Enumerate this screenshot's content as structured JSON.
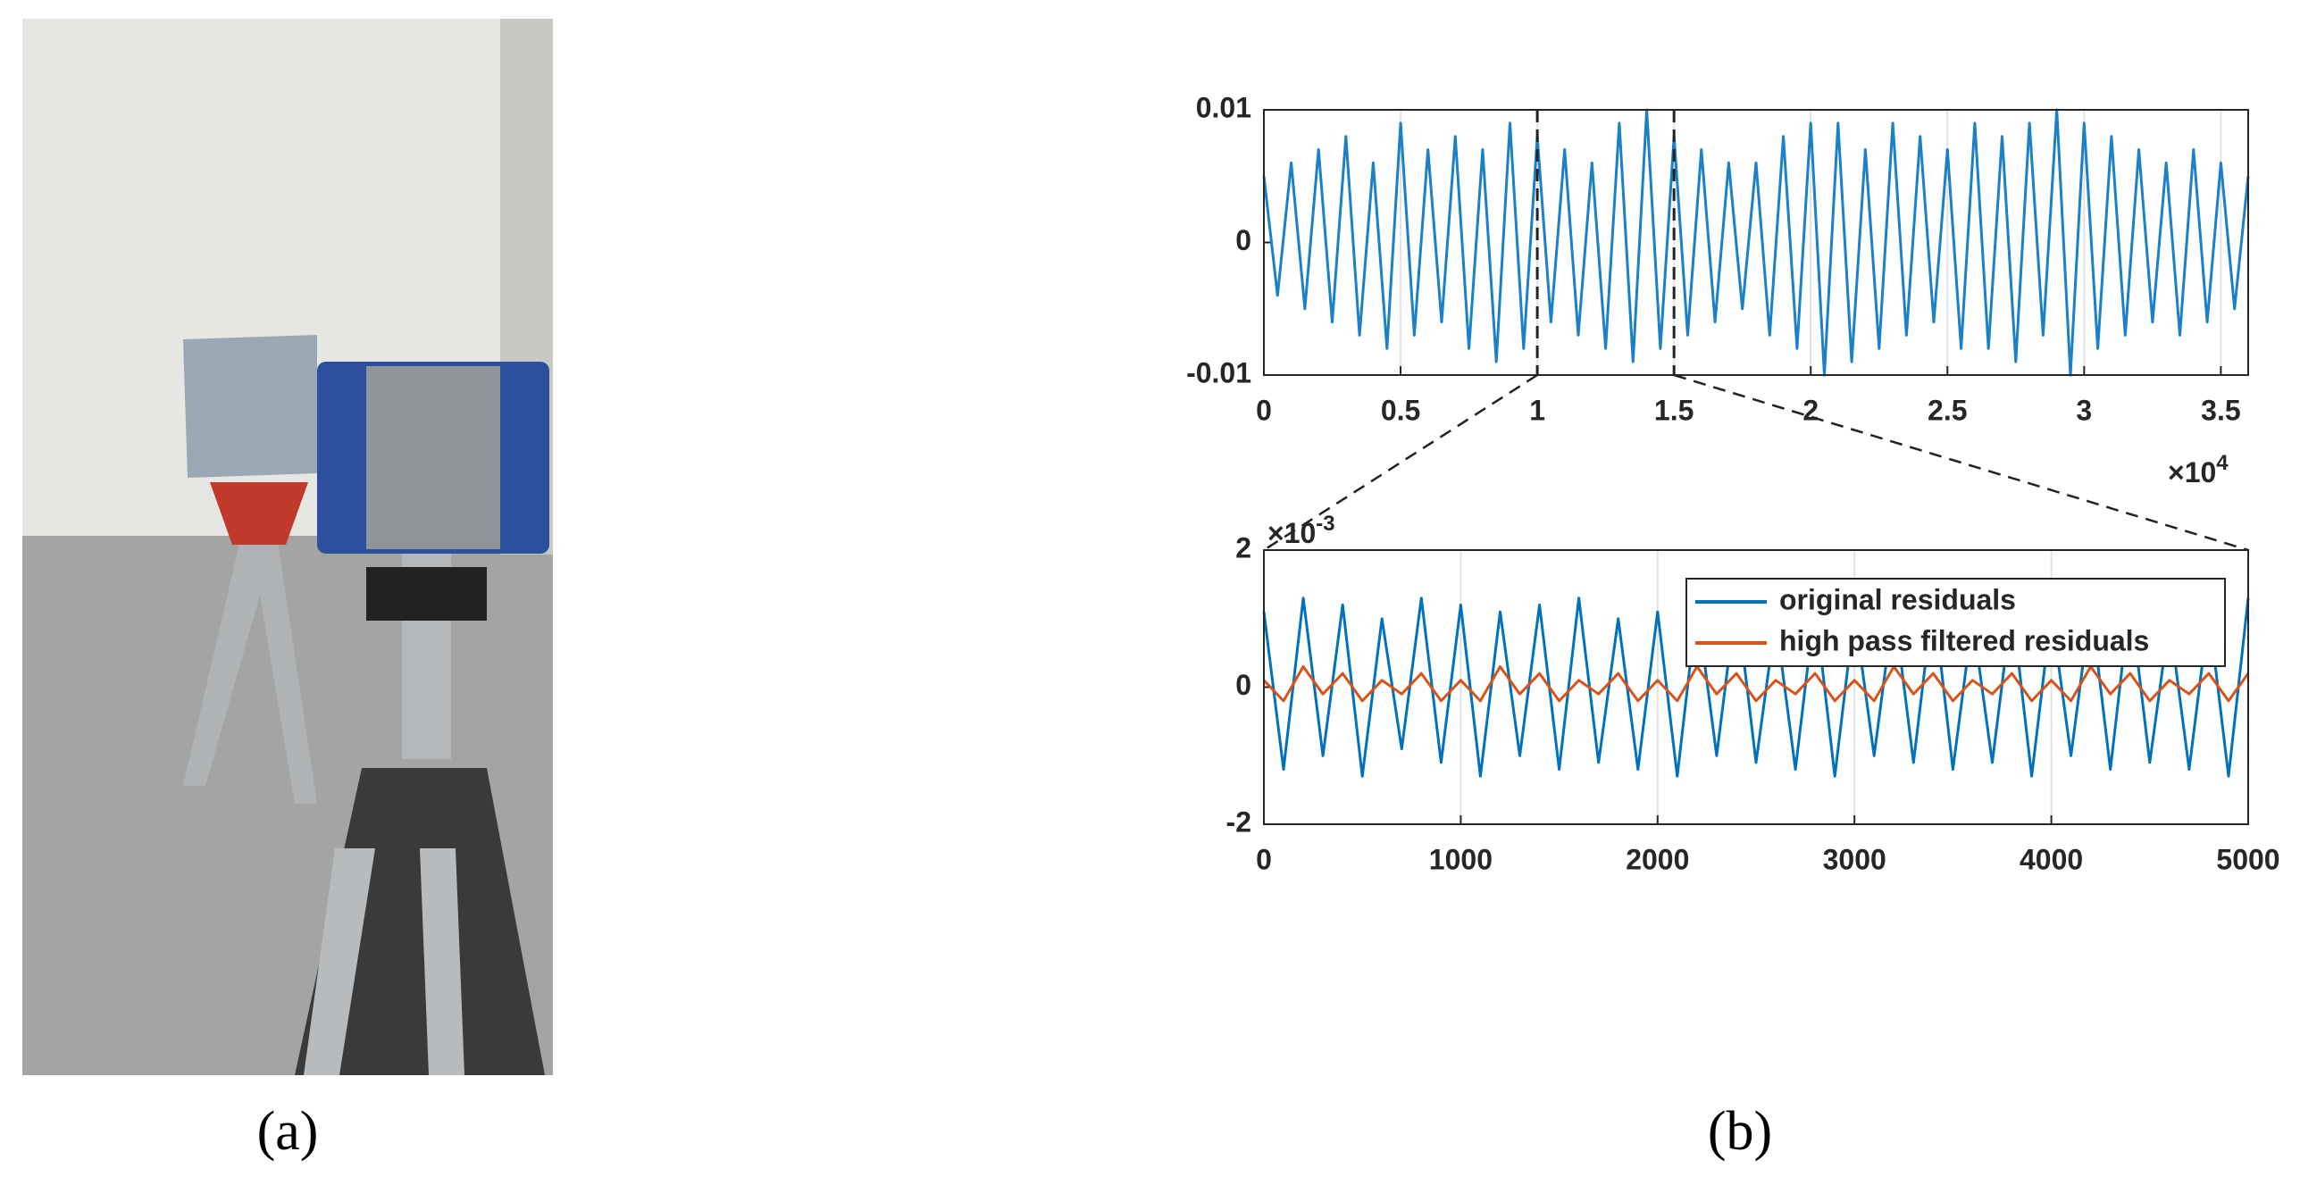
{
  "panels": [
    {
      "label": "(a)"
    },
    {
      "label": "(b)"
    }
  ],
  "chart_data": [
    {
      "type": "line",
      "x": [
        0,
        0.05,
        0.1,
        0.15,
        0.2,
        0.25,
        0.3,
        0.35,
        0.4,
        0.45,
        0.5,
        0.55,
        0.6,
        0.65,
        0.7,
        0.75,
        0.8,
        0.85,
        0.9,
        0.95,
        1,
        1.05,
        1.1,
        1.15,
        1.2,
        1.25,
        1.3,
        1.35,
        1.4,
        1.45,
        1.5,
        1.55,
        1.6,
        1.65,
        1.7,
        1.75,
        1.8,
        1.85,
        1.9,
        1.95,
        2,
        2.05,
        2.1,
        2.15,
        2.2,
        2.25,
        2.3,
        2.35,
        2.4,
        2.45,
        2.5,
        2.55,
        2.6,
        2.65,
        2.7,
        2.75,
        2.8,
        2.85,
        2.9,
        2.95,
        3,
        3.05,
        3.1,
        3.15,
        3.2,
        3.25,
        3.3,
        3.35,
        3.4,
        3.45,
        3.5,
        3.55,
        3.6
      ],
      "values": [
        0.005,
        -0.004,
        0.006,
        -0.005,
        0.007,
        -0.006,
        0.008,
        -0.007,
        0.006,
        -0.008,
        0.009,
        -0.007,
        0.007,
        -0.006,
        0.008,
        -0.008,
        0.007,
        -0.009,
        0.009,
        -0.008,
        0.008,
        -0.006,
        0.007,
        -0.007,
        0.006,
        -0.008,
        0.009,
        -0.009,
        0.01,
        -0.008,
        0.008,
        -0.007,
        0.007,
        -0.006,
        0.006,
        -0.005,
        0.006,
        -0.007,
        0.008,
        -0.008,
        0.009,
        -0.01,
        0.009,
        -0.009,
        0.007,
        -0.008,
        0.009,
        -0.007,
        0.008,
        -0.006,
        0.007,
        -0.008,
        0.009,
        -0.008,
        0.008,
        -0.009,
        0.009,
        -0.007,
        0.01,
        -0.01,
        0.009,
        -0.008,
        0.008,
        -0.007,
        0.007,
        -0.006,
        0.006,
        -0.007,
        0.007,
        -0.006,
        0.006,
        -0.005,
        0.005
      ],
      "color": "#1a80c8",
      "xlim": [
        0,
        3.6
      ],
      "xticks": [
        0,
        0.5,
        1,
        1.5,
        2,
        2.5,
        3,
        3.5
      ],
      "ylim": [
        -0.01,
        0.01
      ],
      "yticks": [
        -0.01,
        0,
        0.01
      ],
      "x_multiplier": {
        "base": "×10",
        "exponent": "4"
      },
      "zoom_range": [
        1,
        1.5
      ],
      "grid": true
    },
    {
      "type": "line",
      "x": [
        0,
        100,
        200,
        300,
        400,
        500,
        600,
        700,
        800,
        900,
        1000,
        1100,
        1200,
        1300,
        1400,
        1500,
        1600,
        1700,
        1800,
        1900,
        2000,
        2100,
        2200,
        2300,
        2400,
        2500,
        2600,
        2700,
        2800,
        2900,
        3000,
        3100,
        3200,
        3300,
        3400,
        3500,
        3600,
        3700,
        3800,
        3900,
        4000,
        4100,
        4200,
        4300,
        4400,
        4500,
        4600,
        4700,
        4800,
        4900,
        5000
      ],
      "series": [
        {
          "name": "original residuals",
          "color": "#0072bd",
          "values": [
            1.1,
            -1.2,
            1.3,
            -1.0,
            1.2,
            -1.3,
            1.0,
            -0.9,
            1.3,
            -1.1,
            1.2,
            -1.3,
            1.1,
            -1.0,
            1.2,
            -1.2,
            1.3,
            -1.1,
            1.0,
            -1.2,
            1.1,
            -1.3,
            1.2,
            -1.0,
            1.3,
            -1.1,
            1.0,
            -1.2,
            1.2,
            -1.3,
            1.1,
            -1.0,
            1.2,
            -1.1,
            1.3,
            -1.2,
            1.0,
            -1.1,
            1.2,
            -1.3,
            1.1,
            -1.0,
            1.2,
            -1.2,
            1.3,
            -1.1,
            1.0,
            -1.2,
            1.1,
            -1.3,
            1.3
          ]
        },
        {
          "name": "high pass filtered residuals",
          "color": "#d95319",
          "values": [
            0.1,
            -0.2,
            0.3,
            -0.1,
            0.2,
            -0.2,
            0.1,
            -0.1,
            0.2,
            -0.2,
            0.1,
            -0.2,
            0.3,
            -0.1,
            0.2,
            -0.2,
            0.1,
            -0.1,
            0.2,
            -0.2,
            0.1,
            -0.2,
            0.3,
            -0.1,
            0.2,
            -0.2,
            0.1,
            -0.1,
            0.2,
            -0.2,
            0.1,
            -0.2,
            0.3,
            -0.1,
            0.2,
            -0.2,
            0.1,
            -0.1,
            0.2,
            -0.2,
            0.1,
            -0.2,
            0.3,
            -0.1,
            0.2,
            -0.2,
            0.1,
            -0.1,
            0.2,
            -0.2,
            0.2
          ]
        }
      ],
      "xlim": [
        0,
        5000
      ],
      "xticks": [
        0,
        1000,
        2000,
        3000,
        4000,
        5000
      ],
      "ylim": [
        -2,
        2
      ],
      "yticks": [
        -2,
        0,
        2
      ],
      "y_multiplier": {
        "base": "×10",
        "exponent": "-3"
      },
      "legend": "upper right",
      "grid": true
    }
  ]
}
